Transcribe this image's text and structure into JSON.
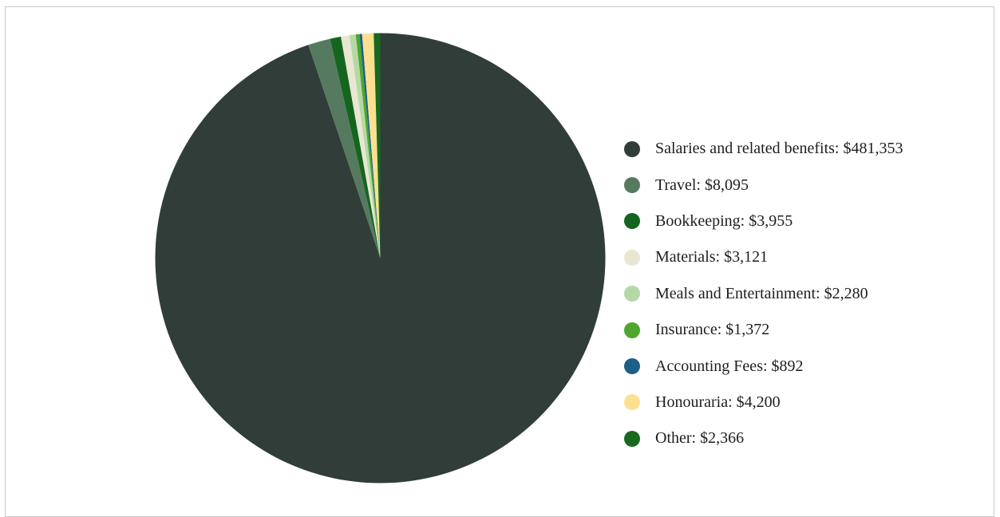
{
  "chart_data": {
    "type": "pie",
    "legend_position": "right",
    "start_angle_deg": 0,
    "direction": "clockwise",
    "slices": [
      {
        "label": "Salaries and related benefits: $481,353",
        "name": "Salaries and related benefits",
        "value": 481353,
        "color": "#303d38"
      },
      {
        "label": "Travel: $8,095",
        "name": "Travel",
        "value": 8095,
        "color": "#567a60"
      },
      {
        "label": "Bookkeeping: $3,955",
        "name": "Bookkeeping",
        "value": 3955,
        "color": "#14661f"
      },
      {
        "label": "Materials: $3,121",
        "name": "Materials",
        "value": 3121,
        "color": "#e9e6d2"
      },
      {
        "label": "Meals and Entertainment: $2,280",
        "name": "Meals and Entertainment",
        "value": 2280,
        "color": "#b5d9a6"
      },
      {
        "label": "Insurance: $1,372",
        "name": "Insurance",
        "value": 1372,
        "color": "#4ea62d"
      },
      {
        "label": "Accounting Fees: $892",
        "name": "Accounting Fees",
        "value": 892,
        "color": "#1c5f87"
      },
      {
        "label": "Honouraria: $4,200",
        "name": "Honouraria",
        "value": 4200,
        "color": "#fde08f"
      },
      {
        "label": "Other: $2,366",
        "name": "Other",
        "value": 2366,
        "color": "#17691f"
      }
    ]
  }
}
